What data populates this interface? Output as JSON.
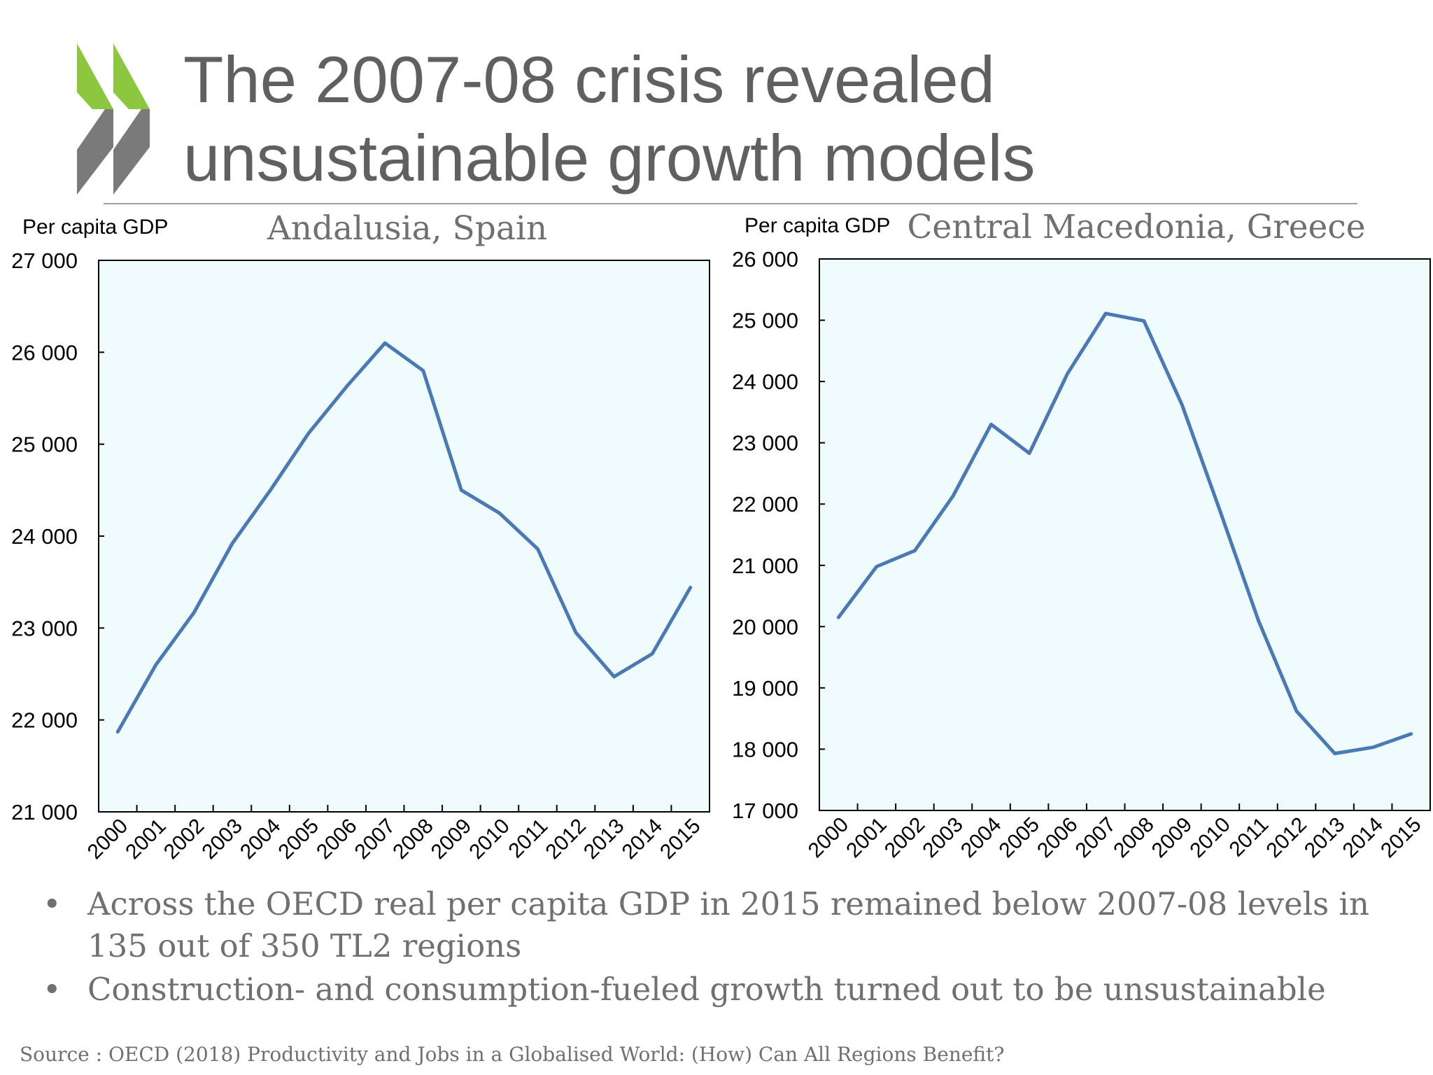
{
  "slide": {
    "title_line1": "The 2007-08 crisis revealed",
    "title_line2": "unsustainable growth models",
    "bullets": [
      "Across the OECD real per capita GDP in 2015 remained below 2007-08 levels in 135 out of 350 TL2 regions",
      "Construction- and consumption-fueled growth turned out to be unsustainable"
    ],
    "bullet_symbol": "•",
    "source": "Source : OECD (2018) Productivity and Jobs in a Globalised World: (How) Can All Regions Benefit?"
  },
  "colors": {
    "logo_green": "#8dc63f",
    "logo_grey": "#7a7a7a",
    "line": "#4a7ab5",
    "plot_bg": "#f0fbfd",
    "text_grey": "#606060"
  },
  "chart_data": [
    {
      "type": "line",
      "title": "Andalusia, Spain",
      "ylabel": "Per capita GDP",
      "x": [
        "2000",
        "2001",
        "2002",
        "2003",
        "2004",
        "2005",
        "2006",
        "2007",
        "2008",
        "2009",
        "2010",
        "2011",
        "2012",
        "2013",
        "2014",
        "2015"
      ],
      "series": [
        {
          "values": [
            21870,
            22600,
            23170,
            23920,
            24500,
            25120,
            25630,
            26100,
            25800,
            24500,
            24250,
            23860,
            22950,
            22470,
            22720,
            23440
          ]
        }
      ],
      "ylim": [
        21000,
        27000
      ],
      "yticks": [
        21000,
        22000,
        23000,
        24000,
        25000,
        26000,
        27000
      ],
      "ytick_labels": [
        "21 000",
        "22 000",
        "23 000",
        "24 000",
        "25 000",
        "26 000",
        "27 000"
      ],
      "grid": false,
      "legend": "none"
    },
    {
      "type": "line",
      "title": "Central Macedonia, Greece",
      "ylabel": "Per capita GDP",
      "x": [
        "2000",
        "2001",
        "2002",
        "2003",
        "2004",
        "2005",
        "2006",
        "2007",
        "2008",
        "2009",
        "2010",
        "2011",
        "2012",
        "2013",
        "2014",
        "2015"
      ],
      "series": [
        {
          "values": [
            20150,
            20980,
            21240,
            22130,
            23300,
            22830,
            24130,
            25110,
            24990,
            23620,
            21880,
            20100,
            18620,
            17930,
            18030,
            18250
          ]
        }
      ],
      "ylim": [
        17000,
        26000
      ],
      "yticks": [
        17000,
        18000,
        19000,
        20000,
        21000,
        22000,
        23000,
        24000,
        25000,
        26000
      ],
      "ytick_labels": [
        "17 000",
        "18 000",
        "19 000",
        "20 000",
        "21 000",
        "22 000",
        "23 000",
        "24 000",
        "25 000",
        "26 000"
      ],
      "grid": false,
      "legend": "none"
    }
  ]
}
